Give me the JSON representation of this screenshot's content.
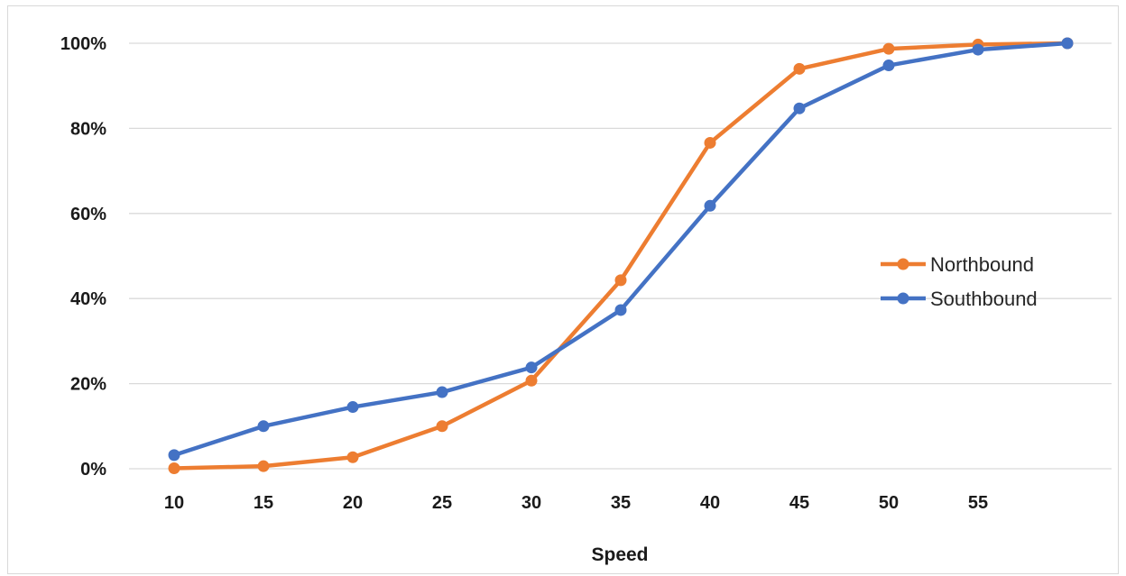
{
  "chart_data": {
    "type": "line",
    "title": "",
    "xlabel": "Speed",
    "ylabel": "",
    "x_tick_labels": [
      "10",
      "15",
      "20",
      "25",
      "30",
      "35",
      "40",
      "45",
      "50",
      "55"
    ],
    "y_tick_labels": [
      "0%",
      "20%",
      "40%",
      "60%",
      "80%",
      "100%"
    ],
    "x": [
      10,
      15,
      20,
      25,
      30,
      35,
      40,
      45,
      50,
      55,
      60
    ],
    "ylim": [
      0,
      1
    ],
    "grid": true,
    "legend_position": "right",
    "series": [
      {
        "name": "Northbound",
        "color": "#ED7D31",
        "values": [
          0.001,
          0.006,
          0.027,
          0.1,
          0.207,
          0.443,
          0.766,
          0.94,
          0.987,
          0.997,
          1.0
        ]
      },
      {
        "name": "Southbound",
        "color": "#4472C4",
        "values": [
          0.032,
          0.1,
          0.145,
          0.18,
          0.238,
          0.373,
          0.618,
          0.847,
          0.948,
          0.985,
          1.0
        ]
      }
    ]
  }
}
